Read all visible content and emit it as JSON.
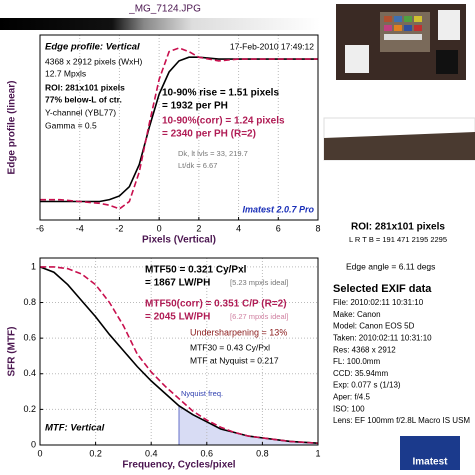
{
  "file_title": "_MG_7124.JPG",
  "chart_data": [
    {
      "type": "line",
      "title": "Edge profile: Vertical",
      "xlabel": "Pixels (Vertical)",
      "ylabel": "Edge profile (linear)",
      "x": [
        -6,
        -5,
        -4,
        -3,
        -2.5,
        -2,
        -1.5,
        -1,
        -0.5,
        0,
        0.5,
        1,
        1.5,
        2,
        3,
        4,
        5,
        6,
        7,
        8
      ],
      "series": [
        {
          "name": "Edge profile",
          "color": "#000000",
          "dash": false,
          "values": [
            0.1,
            0.1,
            0.1,
            0.1,
            0.11,
            0.13,
            0.18,
            0.3,
            0.5,
            0.68,
            0.8,
            0.86,
            0.88,
            0.88,
            0.87,
            0.87,
            0.87,
            0.87,
            0.87,
            0.87
          ]
        },
        {
          "name": "Edge profile (corr)",
          "color": "#c8104e",
          "dash": true,
          "values": [
            0.11,
            0.11,
            0.1,
            0.09,
            0.08,
            0.06,
            0.1,
            0.26,
            0.52,
            0.76,
            0.91,
            0.93,
            0.91,
            0.88,
            0.86,
            0.87,
            0.87,
            0.87,
            0.87,
            0.87
          ]
        }
      ],
      "xlim": [
        -6,
        8
      ],
      "ylim": [
        0,
        1
      ],
      "xticks": [
        -6,
        -4,
        -2,
        0,
        2,
        4,
        6,
        8
      ],
      "grid": true,
      "annotations": [
        "17-Feb-2010 17:49:12",
        "4368 x 2912 pixels (WxH)",
        "12.7 Mpxls",
        "ROI: 281x101 pixels",
        "77% below-L of ctr.",
        "Y-channel (YBL77)",
        "Gamma = 0.5",
        "10-90% rise = 1.51 pixels",
        "= 1932 per PH",
        "10-90%(corr) = 1.24 pixels",
        "= 2340 per PH  (R=2)",
        "Dk, lt lvls = 33, 219.7",
        "Lt/dk = 6.67",
        "Imatest 2.0.7 Pro"
      ]
    },
    {
      "type": "line",
      "title": "MTF: Vertical",
      "xlabel": "Frequency, Cycles/pixel",
      "ylabel": "SFR (MTF)",
      "x": [
        0,
        0.05,
        0.1,
        0.15,
        0.2,
        0.25,
        0.3,
        0.35,
        0.4,
        0.45,
        0.5,
        0.55,
        0.6,
        0.65,
        0.7,
        0.75,
        0.8,
        0.85,
        0.9,
        0.95,
        1
      ],
      "series": [
        {
          "name": "MTF",
          "color": "#000000",
          "dash": false,
          "values": [
            1,
            0.97,
            0.9,
            0.81,
            0.72,
            0.62,
            0.53,
            0.44,
            0.36,
            0.29,
            0.22,
            0.17,
            0.13,
            0.09,
            0.07,
            0.05,
            0.04,
            0.03,
            0.02,
            0.015,
            0.01
          ]
        },
        {
          "name": "MTF (corr)",
          "color": "#c8104e",
          "dash": true,
          "values": [
            1,
            1,
            0.99,
            0.96,
            0.9,
            0.8,
            0.67,
            0.51,
            0.41,
            0.33,
            0.26,
            0.19,
            0.14,
            0.1,
            0.07,
            0.05,
            0.04,
            0.03,
            0.02,
            0.015,
            0.01
          ]
        }
      ],
      "nyquist": 0.5,
      "nyquist_label": "Nyquist freq.",
      "xlim": [
        0,
        1
      ],
      "ylim": [
        0,
        1.05
      ],
      "xticks": [
        0,
        0.2,
        0.4,
        0.6,
        0.8,
        1
      ],
      "yticks": [
        0,
        0.2,
        0.4,
        0.6,
        0.8,
        1
      ],
      "grid": true,
      "annotations": [
        "MTF50 = 0.321 Cy/Pxl",
        "= 1867 LW/PH",
        "[5.23 mpxls ideal]",
        "MTF50(corr) = 0.351 C/P  (R=2)",
        "= 2045 LW/PH",
        "[6.27 mpxls ideal]",
        "Undersharpening = 13%",
        "MTF30 = 0.43 Cy/Pxl",
        "MTF at Nyquist = 0.217"
      ]
    }
  ],
  "panel": {
    "roi": "ROI: 281x101 pixels",
    "lrtb": "L R T B = 191 471  2195 2295",
    "edge_angle": "Edge angle = 6.11 degs",
    "exif_title": "Selected EXIF data",
    "exif": [
      "File:  2010:02:11 10:31:10",
      "Make:  Canon",
      "Model:  Canon EOS 5D",
      "Taken:  2010:02:11 10:31:10",
      "Res:   4368 x 2912",
      "FL:   100.0mm",
      "CCD:   35.94mm",
      "Exp:   0.077 s  (1/13)",
      "Aper:  f/4.5",
      "ISO:   100",
      "Lens:  EF 100mm f/2.8L Macro IS USM"
    ],
    "logo": "Imatest"
  }
}
